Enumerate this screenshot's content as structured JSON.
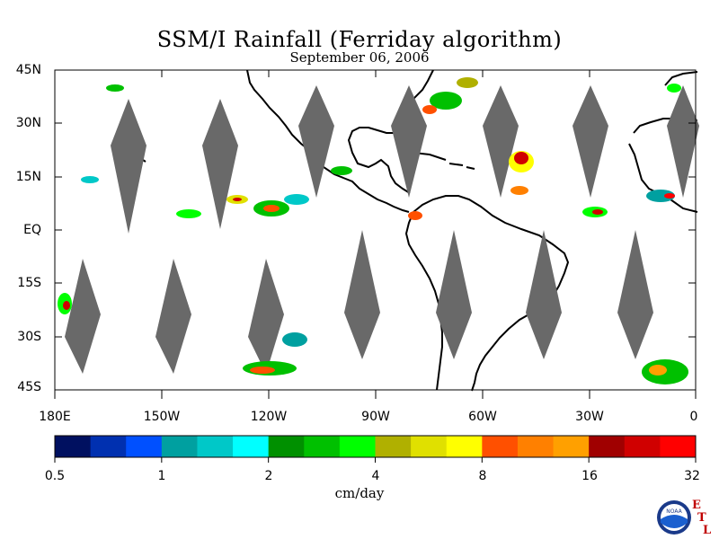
{
  "title": "SSM/I Rainfall (Ferriday algorithm)",
  "subtitle": "September 06, 2006",
  "latitude_labels": [
    "45N",
    "30N",
    "15N",
    "EQ",
    "15S",
    "30S",
    "45S"
  ],
  "longitude_labels": [
    "180E",
    "150W",
    "120W",
    "90W",
    "60W",
    "30W",
    "0"
  ],
  "colorbar": {
    "tick_labels": [
      "0.5",
      "1",
      "2",
      "4",
      "8",
      "16",
      "32"
    ],
    "units": "cm/day",
    "colors": [
      "#001060",
      "#0030b0",
      "#0050ff",
      "#00a0a0",
      "#00c8c8",
      "#00ffff",
      "#009000",
      "#00c000",
      "#00ff00",
      "#b0b000",
      "#e0e000",
      "#ffff00",
      "#ff5000",
      "#ff8000",
      "#ffa000",
      "#a00000",
      "#d00000",
      "#ff0000"
    ]
  },
  "logo": {
    "name": "NOAA",
    "text": "NOAA",
    "etl_letters": [
      "E",
      "T",
      "L"
    ]
  }
}
